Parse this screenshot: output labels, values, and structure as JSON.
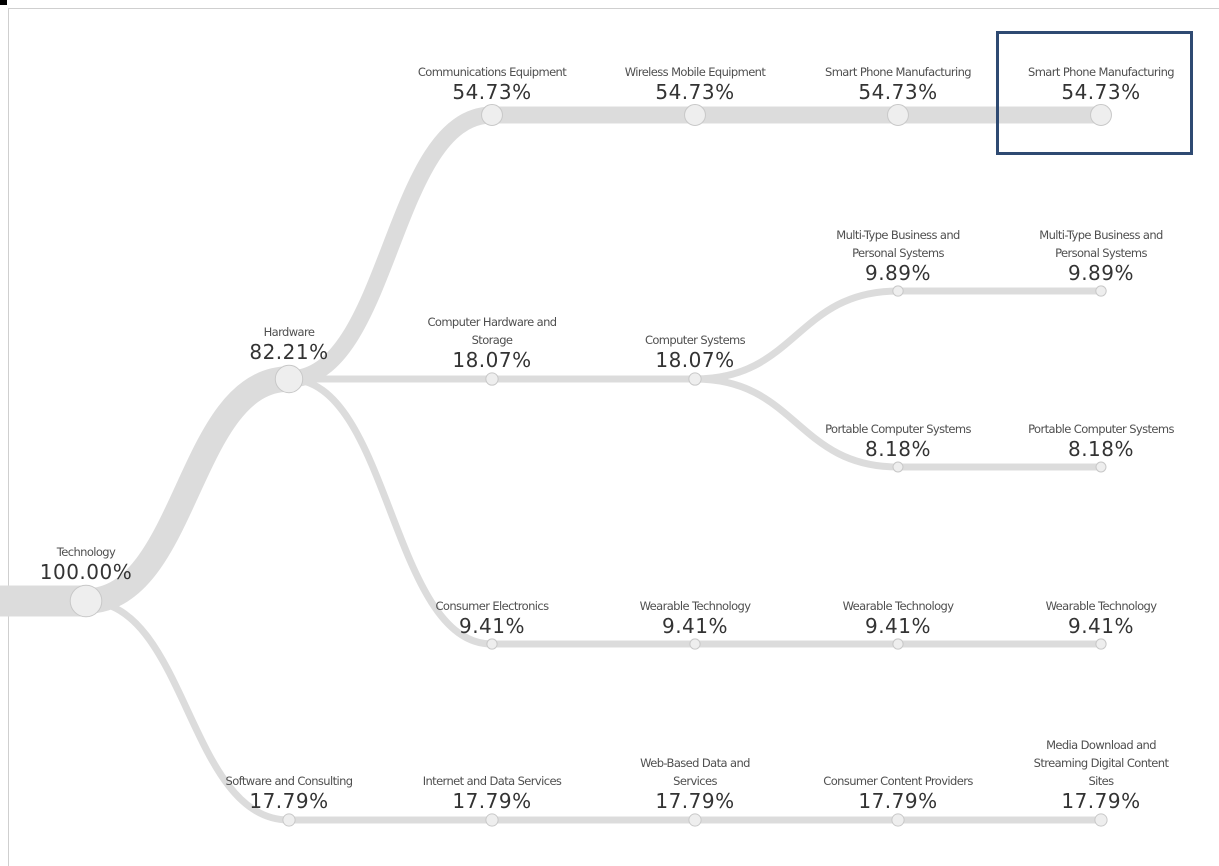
{
  "colors": {
    "link": "#dcdcdc",
    "node_fill": "#eeeeee",
    "node_stroke": "#c8c8c8",
    "highlight": "#2f4a72"
  },
  "nodes": [
    {
      "id": "technology",
      "name": "Technology",
      "value": "100.00%",
      "share": 100.0
    },
    {
      "id": "hardware",
      "name": "Hardware",
      "value": "82.21%",
      "share": 82.21,
      "parent": "technology"
    },
    {
      "id": "software-consulting",
      "name": "Software and Consulting",
      "value": "17.79%",
      "share": 17.79,
      "parent": "technology"
    },
    {
      "id": "communications-equipment",
      "name": "Communications Equipment",
      "value": "54.73%",
      "share": 54.73,
      "parent": "hardware"
    },
    {
      "id": "computer-hardware-storage",
      "name": "Computer Hardware and\nStorage",
      "value": "18.07%",
      "share": 18.07,
      "parent": "hardware"
    },
    {
      "id": "consumer-electronics",
      "name": "Consumer Electronics",
      "value": "9.41%",
      "share": 9.41,
      "parent": "hardware"
    },
    {
      "id": "internet-data-services",
      "name": "Internet and Data Services",
      "value": "17.79%",
      "share": 17.79,
      "parent": "software-consulting"
    },
    {
      "id": "wireless-mobile-equipment",
      "name": "Wireless Mobile Equipment",
      "value": "54.73%",
      "share": 54.73,
      "parent": "communications-equipment"
    },
    {
      "id": "computer-systems",
      "name": "Computer Systems",
      "value": "18.07%",
      "share": 18.07,
      "parent": "computer-hardware-storage"
    },
    {
      "id": "wearable-technology-1",
      "name": "Wearable Technology",
      "value": "9.41%",
      "share": 9.41,
      "parent": "consumer-electronics"
    },
    {
      "id": "web-based-data-services",
      "name": "Web-Based Data and\nServices",
      "value": "17.79%",
      "share": 17.79,
      "parent": "internet-data-services"
    },
    {
      "id": "smart-phone-manufacturing-1",
      "name": "Smart Phone Manufacturing",
      "value": "54.73%",
      "share": 54.73,
      "parent": "wireless-mobile-equipment"
    },
    {
      "id": "multi-type-systems-1",
      "name": "Multi-Type Business and\nPersonal Systems",
      "value": "9.89%",
      "share": 9.89,
      "parent": "computer-systems"
    },
    {
      "id": "portable-computer-systems-1",
      "name": "Portable Computer Systems",
      "value": "8.18%",
      "share": 8.18,
      "parent": "computer-systems"
    },
    {
      "id": "wearable-technology-2",
      "name": "Wearable Technology",
      "value": "9.41%",
      "share": 9.41,
      "parent": "wearable-technology-1"
    },
    {
      "id": "consumer-content-providers",
      "name": "Consumer Content Providers",
      "value": "17.79%",
      "share": 17.79,
      "parent": "web-based-data-services"
    },
    {
      "id": "smart-phone-manufacturing-2",
      "name": "Smart Phone Manufacturing",
      "value": "54.73%",
      "share": 54.73,
      "parent": "smart-phone-manufacturing-1",
      "highlighted": true
    },
    {
      "id": "multi-type-systems-2",
      "name": "Multi-Type Business and\nPersonal Systems",
      "value": "9.89%",
      "share": 9.89,
      "parent": "multi-type-systems-1"
    },
    {
      "id": "portable-computer-systems-2",
      "name": "Portable Computer Systems",
      "value": "8.18%",
      "share": 8.18,
      "parent": "portable-computer-systems-1"
    },
    {
      "id": "wearable-technology-3",
      "name": "Wearable Technology",
      "value": "9.41%",
      "share": 9.41,
      "parent": "wearable-technology-2"
    },
    {
      "id": "media-download-streaming",
      "name": "Media Download and\nStreaming Digital Content\nSites",
      "value": "17.79%",
      "share": 17.79,
      "parent": "consumer-content-providers"
    }
  ]
}
